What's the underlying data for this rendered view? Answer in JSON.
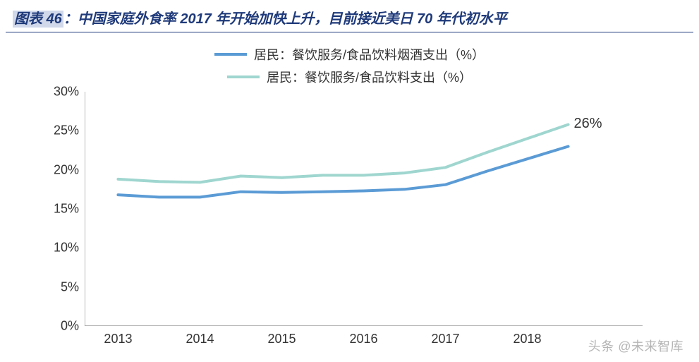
{
  "title": {
    "prefix": "图表",
    "number": "46",
    "sep": "：",
    "text": "中国家庭外食率 2017 年开始加快上升，目前接近美日 70 年代初水平",
    "color": "#1f3a7a",
    "highlight_bg": "#d0d8ea",
    "fontsize": 20
  },
  "legend": {
    "items": [
      {
        "label": "居民：餐饮服务/食品饮料烟酒支出（%）",
        "color": "#5b9bd5"
      },
      {
        "label": "居民：餐饮服务/食品饮料支出（%）",
        "color": "#9fd6cf"
      }
    ],
    "fontsize": 18,
    "swatch_width": 46,
    "swatch_height": 4
  },
  "chart": {
    "type": "line",
    "background_color": "#ffffff",
    "axis_color": "#888888",
    "axis_width": 1.2,
    "tick_length": 6,
    "tick_fontsize": 18,
    "label_color": "#333333",
    "x": {
      "categories": [
        "2013",
        "2014",
        "2015",
        "2016",
        "2017",
        "2018"
      ],
      "domain_padding": 0.06
    },
    "y": {
      "min": 0,
      "max": 30,
      "step": 5,
      "suffix": "%"
    },
    "series": [
      {
        "name": "series-2",
        "legend_idx": 1,
        "color": "#9fd6cf",
        "line_width": 4,
        "values": [
          18.8,
          18.4,
          19.0,
          19.3,
          20.3,
          24.0
        ],
        "half_step_values": [
          18.5,
          19.2,
          19.3,
          19.6,
          22.2,
          25.8
        ],
        "end_label": "26%"
      },
      {
        "name": "series-1",
        "legend_idx": 0,
        "color": "#5b9bd5",
        "line_width": 4,
        "values": [
          16.8,
          16.5,
          17.1,
          17.3,
          18.1,
          21.4
        ],
        "half_step_values": [
          16.5,
          17.2,
          17.2,
          17.5,
          19.8,
          23.0
        ]
      }
    ]
  },
  "watermark": "头条 @未来智库"
}
